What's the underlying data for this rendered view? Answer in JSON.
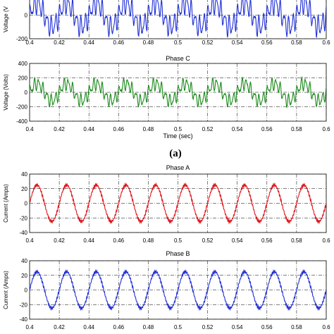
{
  "figure": {
    "subfigure_label": "(a)"
  },
  "chart_data": [
    {
      "type": "line",
      "panel": "voltage-phase-b-partial",
      "title": "",
      "xlabel": "",
      "ylabel": "Voltage (V",
      "xlim": [
        0.4,
        0.6
      ],
      "ylim": [
        -200,
        200
      ],
      "xticks": [
        "0.4",
        "0.42",
        "0.44",
        "0.46",
        "0.48",
        "0.5",
        "0.52",
        "0.54",
        "0.56",
        "0.58",
        "0.6"
      ],
      "yticks": [
        "0",
        "-200"
      ],
      "series": [
        {
          "color": "#1f2fd6",
          "period_s": 0.02,
          "fundamental_amplitude": 100,
          "ripple_amplitude": 70,
          "ripple_harmonic": 7,
          "x_start": 0.4,
          "x_end": 0.6
        }
      ]
    },
    {
      "type": "line",
      "panel": "voltage-phase-c",
      "title": "Phase C",
      "xlabel": "Time (sec)",
      "ylabel": "Voltage (Volts)",
      "xlim": [
        0.4,
        0.6
      ],
      "ylim": [
        -400,
        400
      ],
      "xticks": [
        "0.4",
        "0.42",
        "0.44",
        "0.46",
        "0.48",
        "0.5",
        "0.52",
        "0.54",
        "0.56",
        "0.58",
        "0.6"
      ],
      "yticks": [
        "400",
        "200",
        "0",
        "-200",
        "-400"
      ],
      "series": [
        {
          "color": "#1a8a1a",
          "period_s": 0.02,
          "fundamental_amplitude": 120,
          "ripple_amplitude": 70,
          "ripple_harmonic": 7,
          "x_start": 0.4,
          "x_end": 0.6
        }
      ]
    },
    {
      "type": "line",
      "panel": "current-phase-a",
      "title": "Phase A",
      "xlabel": "",
      "ylabel": "Current (Amps)",
      "xlim": [
        0.4,
        0.6
      ],
      "ylim": [
        -40,
        40
      ],
      "xticks": [
        "0.4",
        "0.42",
        "0.44",
        "0.46",
        "0.48",
        "0.5",
        "0.52",
        "0.54",
        "0.56",
        "0.58",
        "0.6"
      ],
      "yticks": [
        "40",
        "20",
        "0",
        "-20",
        "-40"
      ],
      "series": [
        {
          "color": "#e0141a",
          "period_s": 0.02,
          "fundamental_amplitude": 25,
          "ripple_amplitude": 1.5,
          "ripple_harmonic": 23,
          "x_start": 0.4,
          "x_end": 0.6
        }
      ]
    },
    {
      "type": "line",
      "panel": "current-phase-b",
      "title": "Phase B",
      "xlabel": "",
      "ylabel": "Current (Amps)",
      "xlim": [
        0.4,
        0.6
      ],
      "ylim": [
        -40,
        40
      ],
      "xticks": [
        "0.4",
        "0.42",
        "0.44",
        "0.46",
        "0.48",
        "0.5",
        "0.52",
        "0.54",
        "0.56",
        "0.58",
        "0.6"
      ],
      "yticks": [
        "40",
        "20",
        "0",
        "-20",
        "-40"
      ],
      "series": [
        {
          "color": "#1f2fd6",
          "period_s": 0.02,
          "fundamental_amplitude": 25,
          "ripple_amplitude": 1.5,
          "ripple_harmonic": 23,
          "x_start": 0.4,
          "x_end": 0.6
        }
      ]
    }
  ]
}
